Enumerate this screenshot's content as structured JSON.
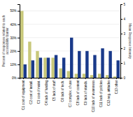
{
  "chart_data": {
    "type": "bar",
    "categories": [
      "C1\ncost of\nequipment",
      "C2\ncost of\ninstall.",
      "C3\ncost of\nmaint.",
      "C4\nlack of\nfunding",
      "C5\nlack of\nstaff",
      "C6\nlack of\ntech.",
      "C7\ncomplex.\nof use",
      "C8\nlack of\ncontent",
      "C9\nlack of\nstands.",
      "C10\nlack of\nawareness",
      "C11\nlack of\npolicies",
      "C12\nneg.\nattitudes",
      "C13\nother"
    ],
    "series": [
      {
        "color": "#c8c87a",
        "values": [
          50,
          27,
          20,
          15,
          15,
          7,
          5,
          3,
          3,
          2,
          3,
          2,
          1
        ]
      },
      {
        "color": "#1a3a8a",
        "values": [
          10,
          13,
          15,
          15,
          17,
          15,
          30,
          20,
          20,
          17,
          22,
          20,
          13
        ]
      }
    ],
    "y_label": "Percent of responses related to each\naccessibility barrier",
    "y2_label": "Mean Response Intensity",
    "ylim": [
      0,
      55
    ],
    "yticks": [
      {
        "value": 0,
        "label": "0%"
      },
      {
        "value": 10,
        "label": "10%"
      },
      {
        "value": 20,
        "label": "20%"
      },
      {
        "value": 30,
        "label": "30%"
      },
      {
        "value": 40,
        "label": "40%"
      },
      {
        "value": 50,
        "label": "50%"
      }
    ],
    "y2lim": [
      0,
      5
    ],
    "y2ticks": [
      0,
      1,
      2,
      3,
      4,
      5
    ],
    "grid": true
  }
}
